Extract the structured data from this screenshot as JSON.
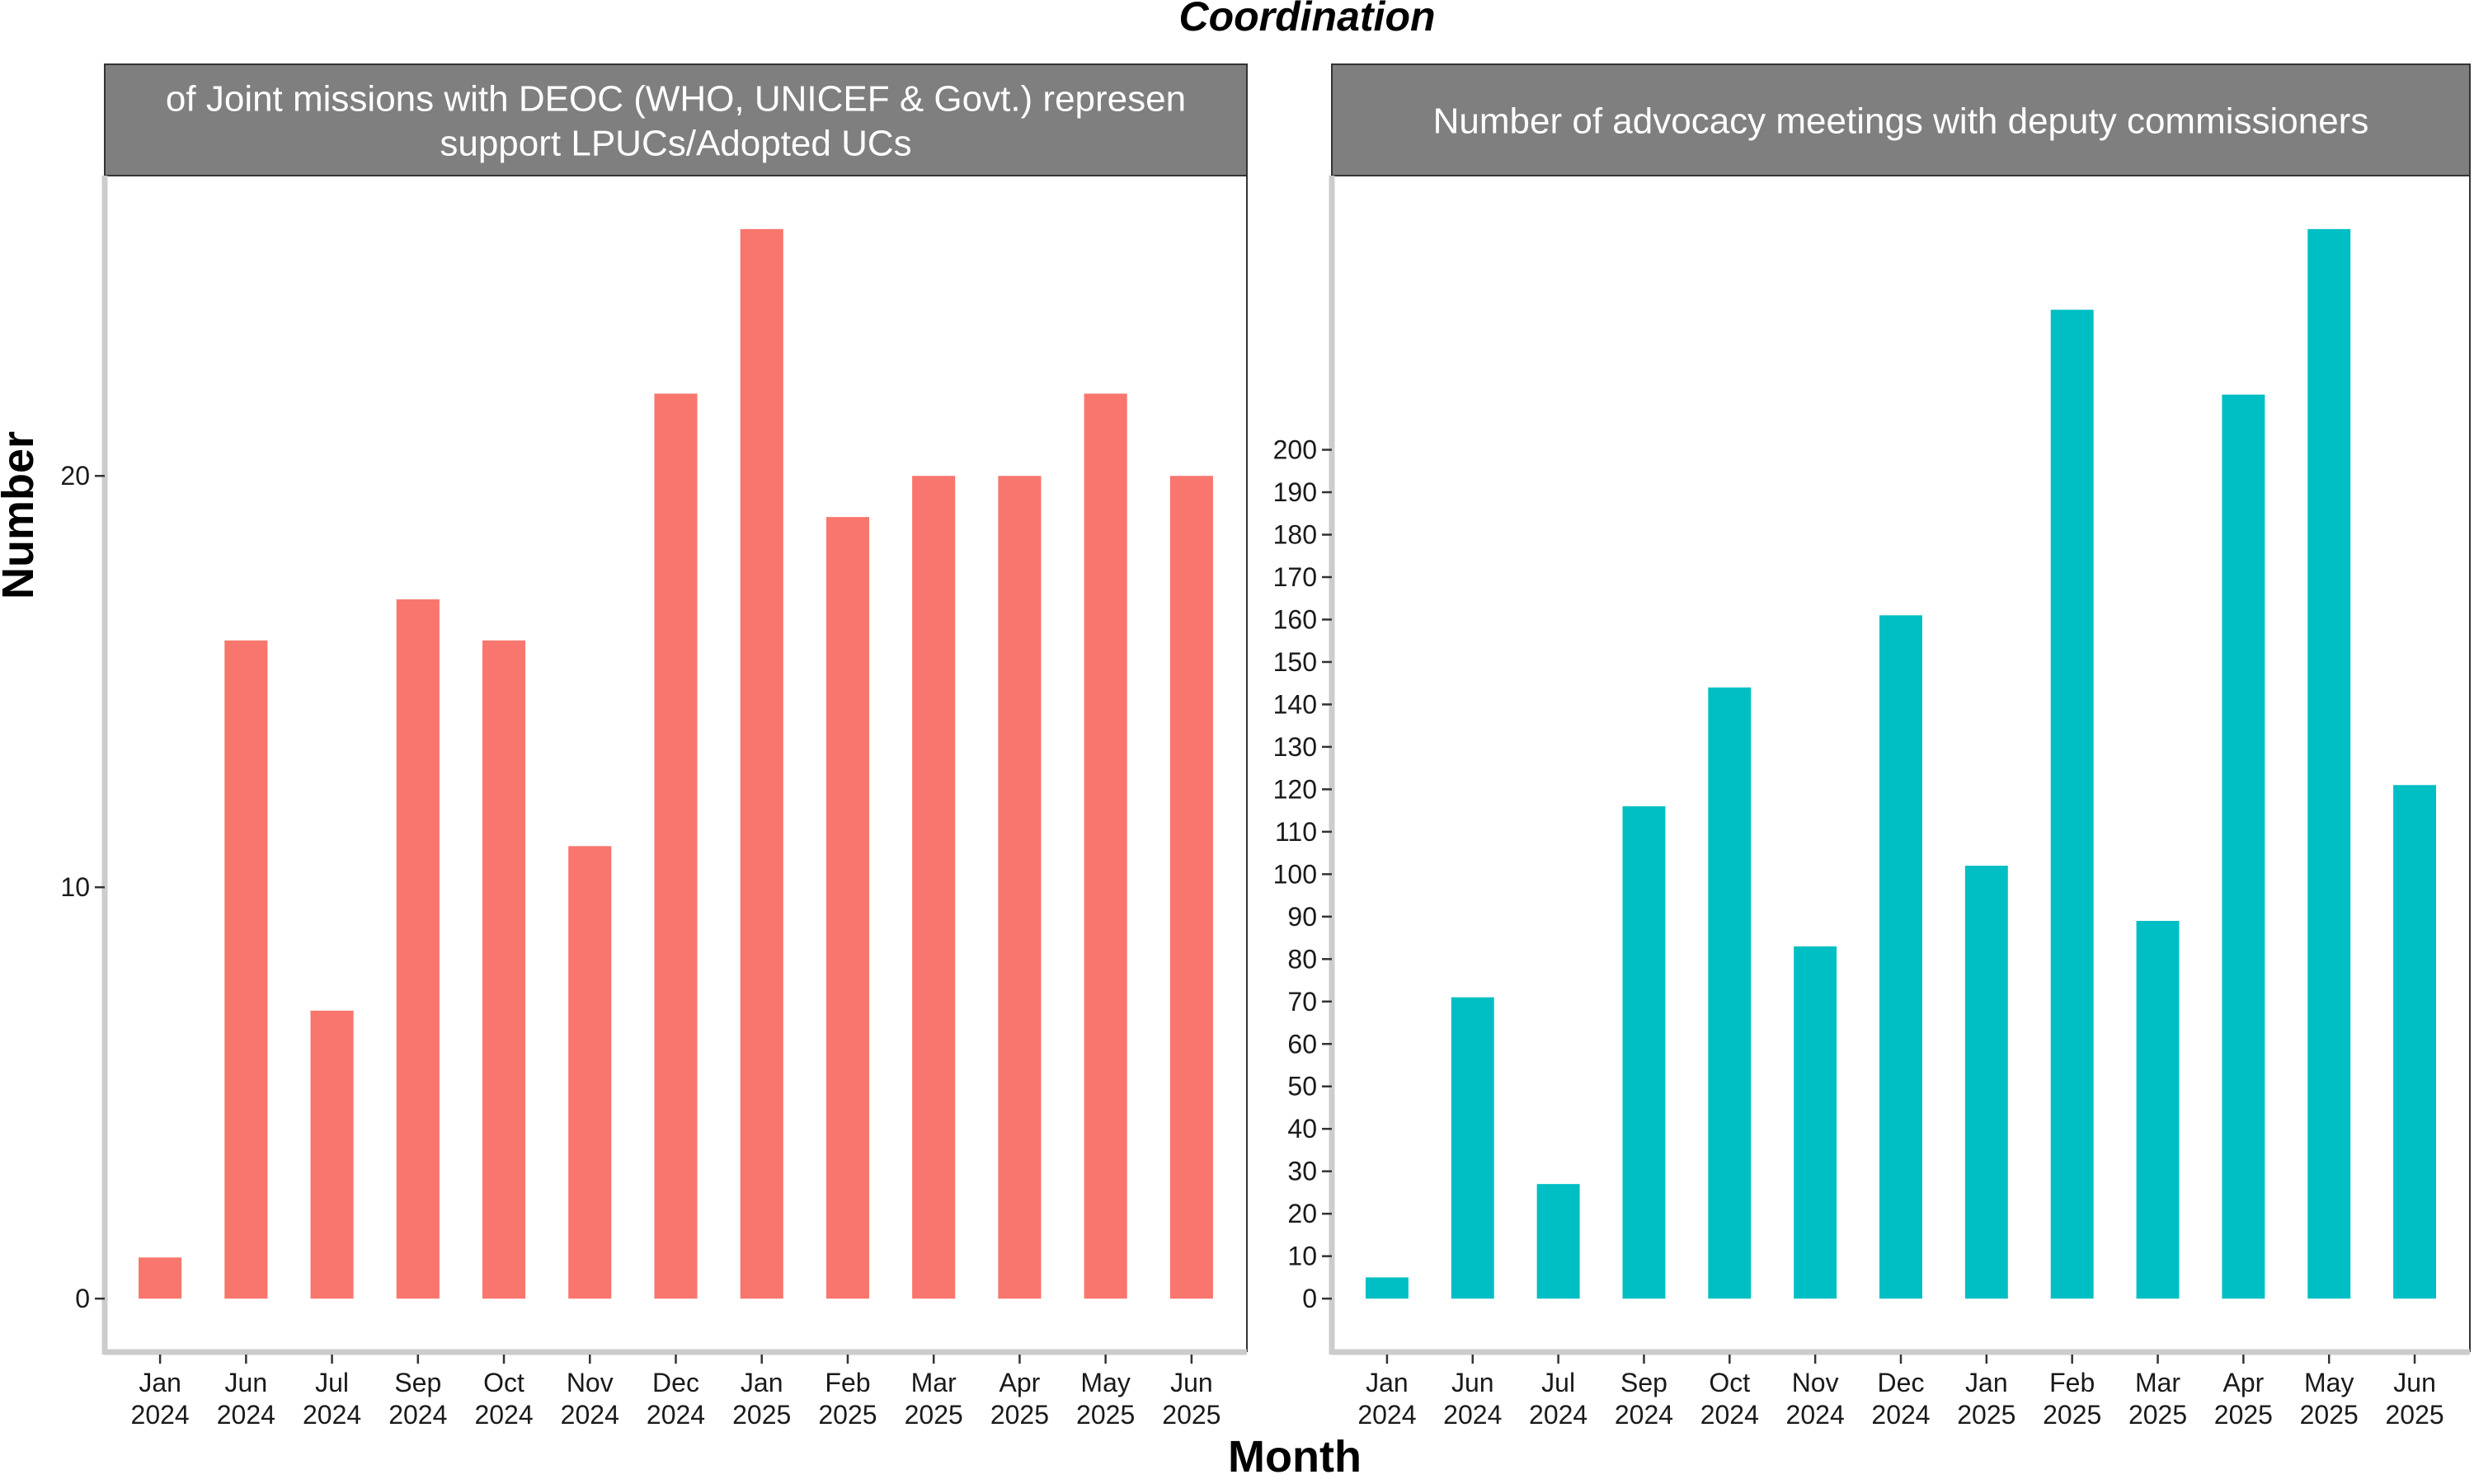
{
  "title": "Coordination",
  "xlabel": "Month",
  "ylabel": "Number",
  "colors": {
    "left_bars": "#F8766D",
    "right_bars": "#00BFC4",
    "strip_fill": "#7F7F7F",
    "strip_text": "#FFFFFF",
    "axis_line": "#CCCCCC"
  },
  "chart_data": [
    {
      "type": "bar",
      "title": "Number of Joint missions with DEOC (WHO, UNICEF & Govt.) representatives to support LPUCs/Adopted UCs",
      "title_visible_lines": [
        "of Joint missions with DEOC (WHO, UNICEF & Govt.) represen",
        "support LPUCs/Adopted UCs"
      ],
      "categories": [
        "Jan 2024",
        "Jun 2024",
        "Jul 2024",
        "Sep 2024",
        "Oct 2024",
        "Nov 2024",
        "Dec 2024",
        "Jan 2025",
        "Feb 2025",
        "Mar 2025",
        "Apr 2025",
        "May 2025",
        "Jun 2025"
      ],
      "category_lines": [
        [
          "Jan",
          "2024"
        ],
        [
          "Jun",
          "2024"
        ],
        [
          "Jul",
          "2024"
        ],
        [
          "Sep",
          "2024"
        ],
        [
          "Oct",
          "2024"
        ],
        [
          "Nov",
          "2024"
        ],
        [
          "Dec",
          "2024"
        ],
        [
          "Jan",
          "2025"
        ],
        [
          "Feb",
          "2025"
        ],
        [
          "Mar",
          "2025"
        ],
        [
          "Apr",
          "2025"
        ],
        [
          "May",
          "2025"
        ],
        [
          "Jun",
          "2025"
        ]
      ],
      "values": [
        1,
        16,
        7,
        17,
        16,
        11,
        22,
        26,
        19,
        20,
        20,
        22,
        20
      ],
      "ylim": [
        -1.3,
        27.3
      ],
      "yticks": [
        0,
        10,
        20
      ],
      "color": "#F8766D"
    },
    {
      "type": "bar",
      "title": "Number of advocacy meetings with deputy commissioners",
      "title_visible_lines": [
        "Number of advocacy meetings with deputy commissioners"
      ],
      "categories": [
        "Jan 2024",
        "Jun 2024",
        "Jul 2024",
        "Sep 2024",
        "Oct 2024",
        "Nov 2024",
        "Dec 2024",
        "Jan 2025",
        "Feb 2025",
        "Mar 2025",
        "Apr 2025",
        "May 2025",
        "Jun 2025"
      ],
      "category_lines": [
        [
          "Jan",
          "2024"
        ],
        [
          "Jun",
          "2024"
        ],
        [
          "Jul",
          "2024"
        ],
        [
          "Sep",
          "2024"
        ],
        [
          "Oct",
          "2024"
        ],
        [
          "Nov",
          "2024"
        ],
        [
          "Dec",
          "2024"
        ],
        [
          "Jan",
          "2025"
        ],
        [
          "Feb",
          "2025"
        ],
        [
          "Mar",
          "2025"
        ],
        [
          "Apr",
          "2025"
        ],
        [
          "May",
          "2025"
        ],
        [
          "Jun",
          "2025"
        ]
      ],
      "values": [
        5,
        71,
        27,
        116,
        144,
        83,
        161,
        102,
        233,
        89,
        213,
        252,
        121
      ],
      "ylim": [
        -12.6,
        264.6
      ],
      "yticks": [
        0,
        10,
        20,
        30,
        40,
        50,
        60,
        70,
        80,
        90,
        100,
        110,
        120,
        130,
        140,
        150,
        160,
        170,
        180,
        190,
        200
      ],
      "color": "#00BFC4"
    }
  ]
}
